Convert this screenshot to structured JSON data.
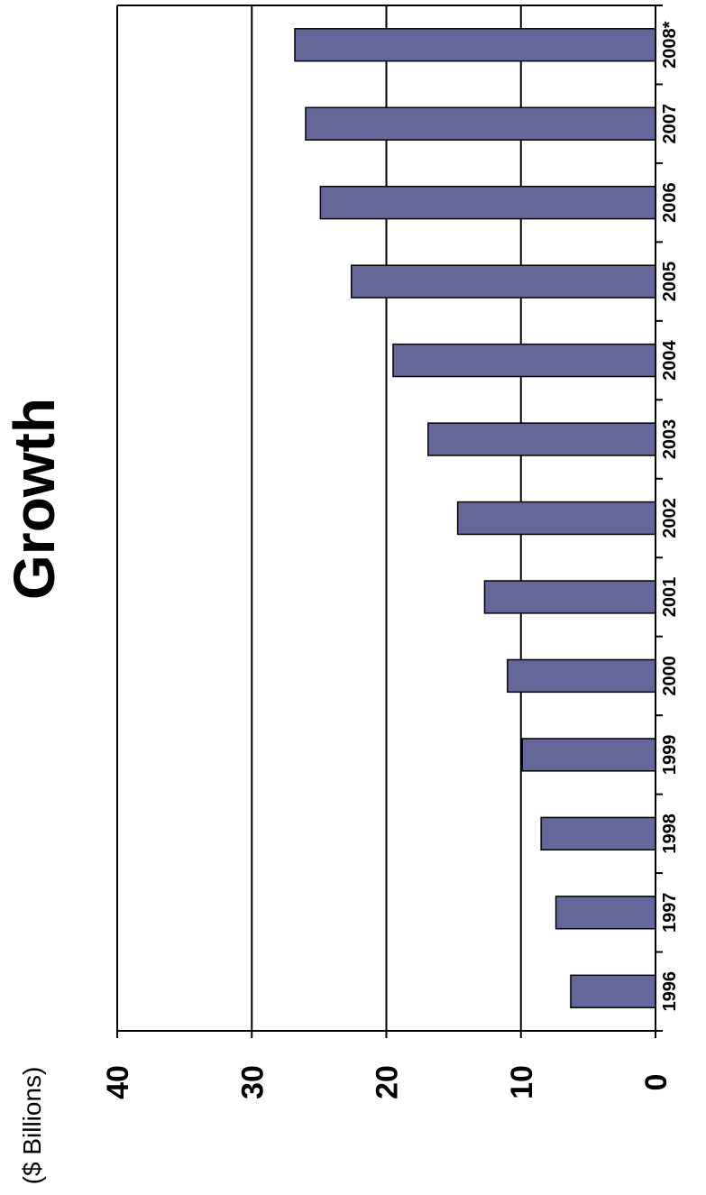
{
  "chart_data": {
    "type": "bar",
    "orientation": "vertical (image rotated 90° clockwise)",
    "title": "Growth",
    "unit_label": "($ Billions)",
    "categories": [
      "1996",
      "1997",
      "1998",
      "1999",
      "2000",
      "2001",
      "2002",
      "2003",
      "2004",
      "2005",
      "2006",
      "2007",
      "2008*"
    ],
    "values": [
      6.3,
      7.4,
      8.5,
      9.9,
      11.0,
      12.7,
      14.7,
      16.9,
      19.5,
      22.6,
      24.9,
      26.0,
      26.8
    ],
    "yticks": [
      "0",
      "10",
      "20",
      "30",
      "40"
    ],
    "ylim": [
      0,
      40
    ],
    "grid": true,
    "bar_color": "#656699",
    "bar_border_color": "#000000"
  }
}
